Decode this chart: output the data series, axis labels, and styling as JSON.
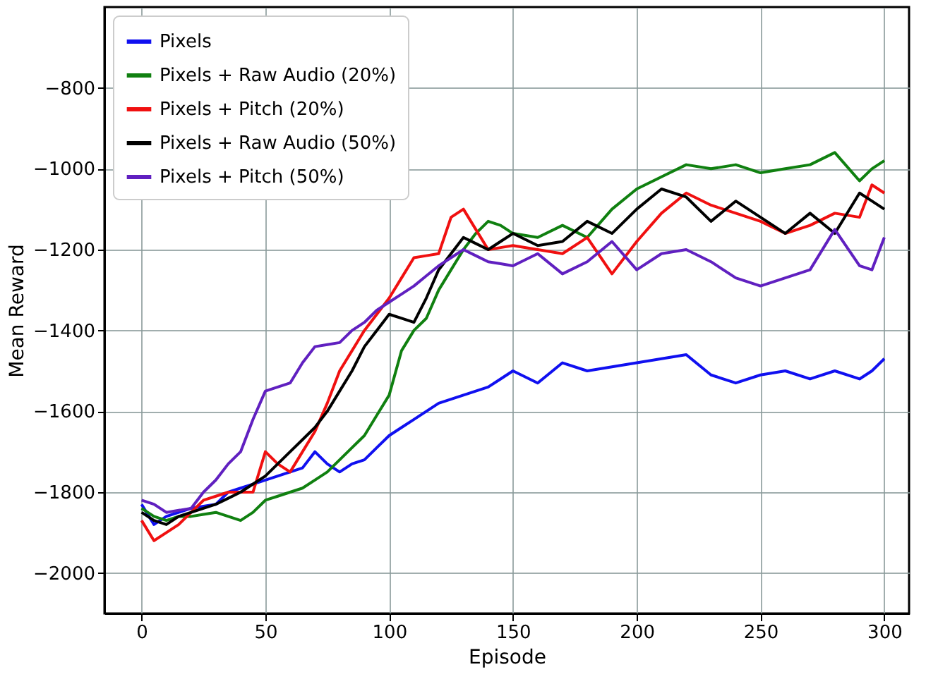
{
  "chart_data": {
    "type": "line",
    "xlabel": "Episode",
    "ylabel": "Mean Reward",
    "x": [
      0,
      5,
      10,
      15,
      20,
      25,
      30,
      35,
      40,
      45,
      50,
      55,
      60,
      65,
      70,
      75,
      80,
      85,
      90,
      95,
      100,
      105,
      110,
      115,
      120,
      125,
      130,
      135,
      140,
      145,
      150,
      160,
      170,
      180,
      190,
      200,
      210,
      220,
      230,
      240,
      250,
      260,
      270,
      280,
      290,
      295,
      300
    ],
    "series": [
      {
        "name": "Pixels",
        "color": "#1010f0",
        "values": [
          -1830,
          -1880,
          -1860,
          -1850,
          -1840,
          -1835,
          -1830,
          -1800,
          -1790,
          -1780,
          -1770,
          -1760,
          -1750,
          -1740,
          -1700,
          -1730,
          -1750,
          -1730,
          -1720,
          -1690,
          -1660,
          -1640,
          -1620,
          -1600,
          -1580,
          -1570,
          -1560,
          -1550,
          -1540,
          -1520,
          -1500,
          -1530,
          -1480,
          -1500,
          -1490,
          -1480,
          -1470,
          -1460,
          -1510,
          -1530,
          -1510,
          -1500,
          -1520,
          -1500,
          -1520,
          -1500,
          -1470
        ]
      },
      {
        "name": "Pixels + Raw Audio (20%)",
        "color": "#108010",
        "values": [
          -1840,
          -1860,
          -1870,
          -1860,
          -1860,
          -1855,
          -1850,
          -1860,
          -1870,
          -1850,
          -1820,
          -1810,
          -1800,
          -1790,
          -1770,
          -1750,
          -1720,
          -1690,
          -1660,
          -1610,
          -1560,
          -1450,
          -1400,
          -1370,
          -1300,
          -1250,
          -1200,
          -1160,
          -1130,
          -1140,
          -1160,
          -1170,
          -1140,
          -1170,
          -1100,
          -1050,
          -1020,
          -990,
          -1000,
          -990,
          -1010,
          -1000,
          -990,
          -960,
          -1030,
          -1000,
          -980
        ]
      },
      {
        "name": "Pixels + Pitch (20%)",
        "color": "#f01010",
        "values": [
          -1870,
          -1920,
          -1900,
          -1880,
          -1850,
          -1820,
          -1810,
          -1800,
          -1800,
          -1800,
          -1700,
          -1730,
          -1750,
          -1700,
          -1650,
          -1580,
          -1500,
          -1450,
          -1400,
          -1360,
          -1320,
          -1270,
          -1220,
          -1215,
          -1210,
          -1120,
          -1100,
          -1150,
          -1200,
          -1195,
          -1190,
          -1200,
          -1210,
          -1170,
          -1260,
          -1180,
          -1110,
          -1060,
          -1090,
          -1110,
          -1130,
          -1160,
          -1140,
          -1110,
          -1120,
          -1040,
          -1060
        ]
      },
      {
        "name": "Pixels + Raw Audio (50%)",
        "color": "#000000",
        "values": [
          -1850,
          -1870,
          -1880,
          -1860,
          -1850,
          -1840,
          -1830,
          -1815,
          -1800,
          -1780,
          -1760,
          -1730,
          -1700,
          -1670,
          -1640,
          -1600,
          -1550,
          -1500,
          -1440,
          -1400,
          -1360,
          -1370,
          -1380,
          -1320,
          -1250,
          -1210,
          -1170,
          -1185,
          -1200,
          -1180,
          -1160,
          -1190,
          -1180,
          -1130,
          -1160,
          -1100,
          -1050,
          -1070,
          -1130,
          -1080,
          -1120,
          -1160,
          -1110,
          -1160,
          -1060,
          -1080,
          -1100
        ]
      },
      {
        "name": "Pixels + Pitch (50%)",
        "color": "#6020c0",
        "values": [
          -1820,
          -1830,
          -1850,
          -1845,
          -1840,
          -1800,
          -1770,
          -1730,
          -1700,
          -1620,
          -1550,
          -1540,
          -1530,
          -1480,
          -1440,
          -1435,
          -1430,
          -1400,
          -1380,
          -1350,
          -1330,
          -1310,
          -1290,
          -1265,
          -1240,
          -1220,
          -1200,
          -1215,
          -1230,
          -1235,
          -1240,
          -1210,
          -1260,
          -1230,
          -1180,
          -1250,
          -1210,
          -1200,
          -1230,
          -1270,
          -1290,
          -1270,
          -1250,
          -1150,
          -1240,
          -1250,
          -1170
        ]
      }
    ],
    "xlim": [
      -15,
      310
    ],
    "xticks": [
      0,
      50,
      100,
      150,
      200,
      250,
      300
    ],
    "ylim": [
      -2100,
      -600
    ],
    "yticks": [
      -2000,
      -1800,
      -1600,
      -1400,
      -1200,
      -1000,
      -800
    ],
    "grid": true,
    "legend": "top left",
    "marker": "none",
    "line_style": "solid"
  }
}
